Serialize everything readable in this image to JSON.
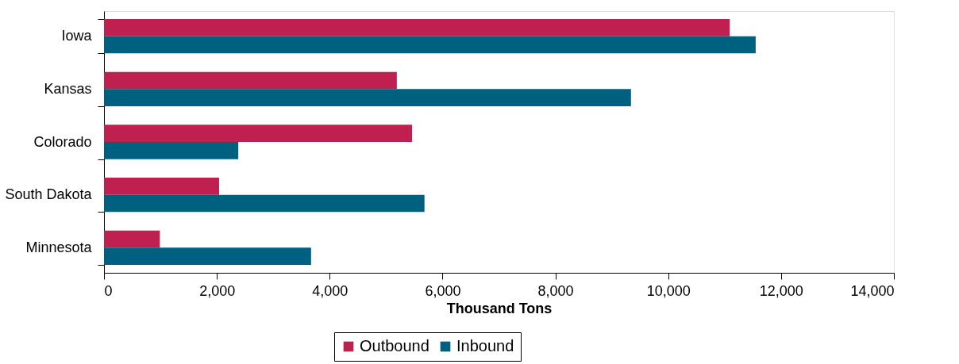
{
  "chart_data": {
    "type": "bar",
    "orientation": "horizontal",
    "xlabel": "Thousand Tons",
    "categories": [
      "Iowa",
      "Kansas",
      "Colorado",
      "South Dakota",
      "Minnesota"
    ],
    "series": [
      {
        "name": "Outbound",
        "color": "#c0204f",
        "values": [
          11090,
          5190,
          5460,
          2040,
          990
        ]
      },
      {
        "name": "Inbound",
        "color": "#00607f",
        "values": [
          11550,
          9340,
          2380,
          5680,
          3670
        ]
      }
    ],
    "xlim": [
      0,
      14000
    ],
    "xticks": [
      0,
      {
        "value": 2000,
        "label": "2,000"
      },
      {
        "value": 4000,
        "label": "4,000"
      },
      {
        "value": 6000,
        "label": "6,000"
      },
      {
        "value": 8000,
        "label": "8,000"
      },
      {
        "value": 10000,
        "label": "10,000"
      },
      {
        "value": 12000,
        "label": "12,000"
      },
      {
        "value": 14000,
        "label": "14,000"
      }
    ],
    "grid": false,
    "legend": "bottom"
  }
}
